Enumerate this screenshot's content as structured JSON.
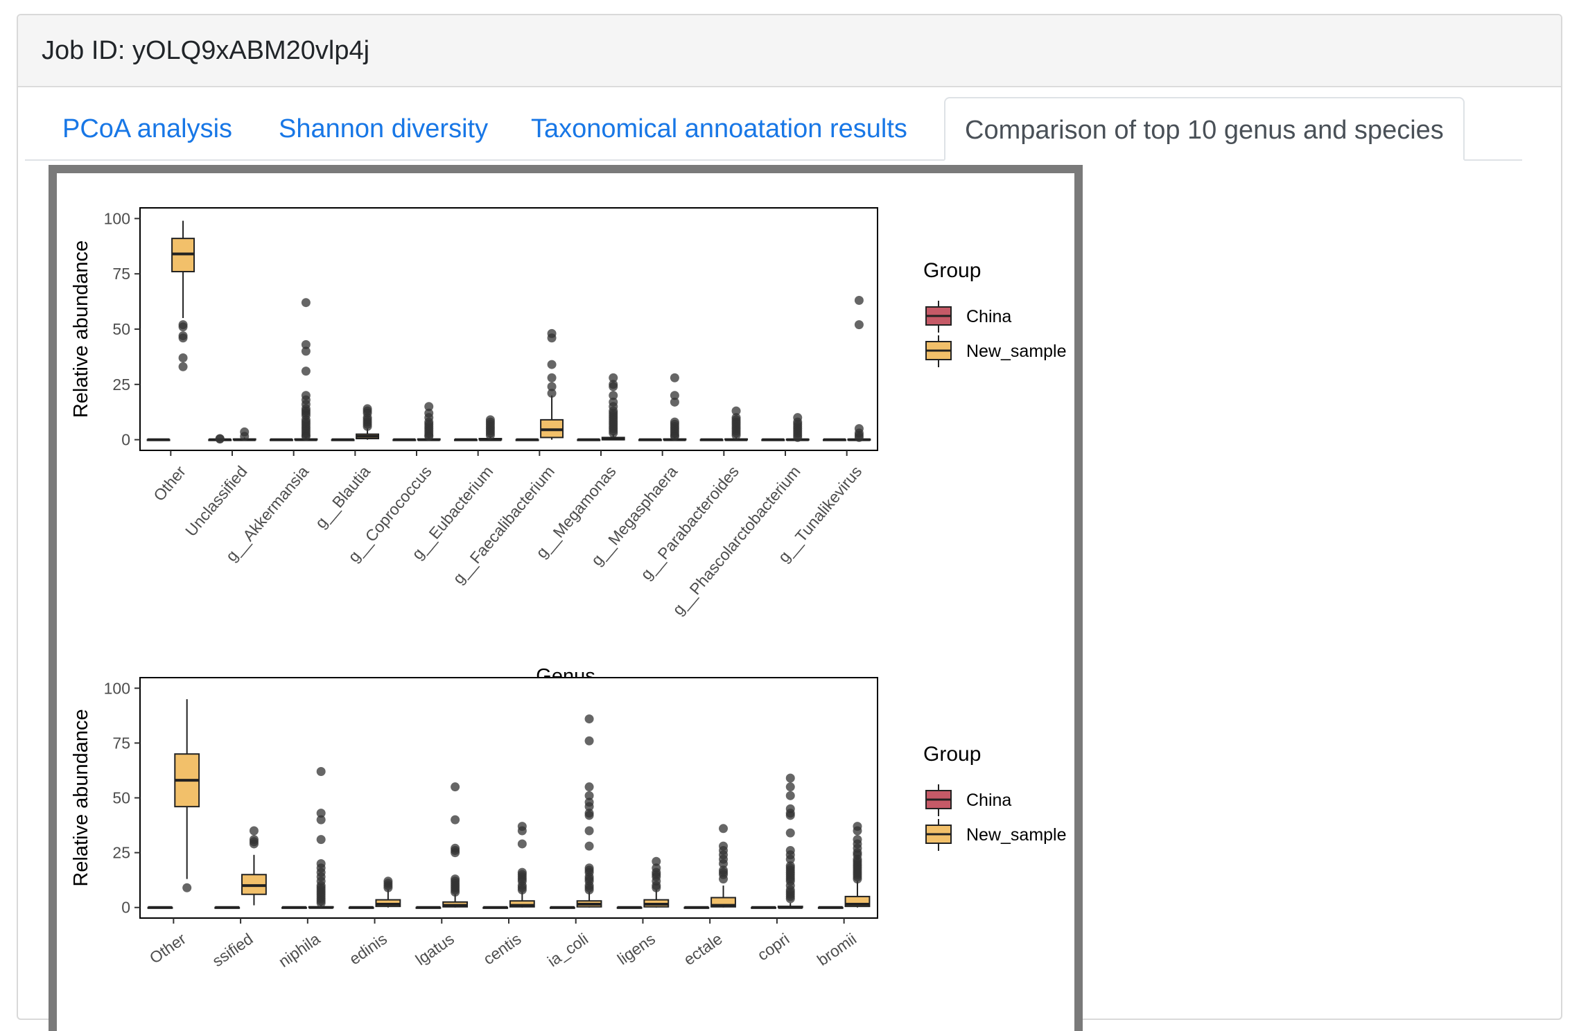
{
  "header": {
    "job_label": "Job ID: yOLQ9xABM20vlp4j"
  },
  "tabs": [
    {
      "label": "PCoA analysis",
      "active": false
    },
    {
      "label": "Shannon diversity",
      "active": false
    },
    {
      "label": "Taxonomical annoatation results",
      "active": false
    },
    {
      "label": "Comparison of top 10 genus and species",
      "active": true
    }
  ],
  "colors": {
    "china": "#c65a67",
    "new_sample": "#f2c06a",
    "tab_link": "#1877e6"
  },
  "chart_data": [
    {
      "type": "boxplot",
      "title": "",
      "ylabel": "Relative abundance",
      "xlabel": "Genus",
      "ylim": [
        0,
        100
      ],
      "yticks": [
        0,
        25,
        50,
        75,
        100
      ],
      "legend": {
        "title": "Group",
        "entries": [
          "China",
          "New_sample"
        ],
        "position": "right"
      },
      "categories": [
        "Other",
        "Unclassified",
        "g__Akkermansia",
        "g__Blautia",
        "g__Coprococcus",
        "g__Eubacterium",
        "g__Faecalibacterium",
        "g__Megamonas",
        "g__Megasphaera",
        "g__Parabacteroides",
        "g__Phascolarctobacterium",
        "g__Tunalikevirus"
      ],
      "series": [
        {
          "name": "China",
          "boxes": [
            {
              "min": 0,
              "q1": 0,
              "median": 0,
              "q3": 0,
              "max": 0,
              "outliers": []
            },
            {
              "min": 0,
              "q1": 0,
              "median": 0,
              "q3": 0,
              "max": 0,
              "outliers": [
                0.5,
                0.3
              ]
            },
            {
              "min": 0,
              "q1": 0,
              "median": 0,
              "q3": 0,
              "max": 0,
              "outliers": []
            },
            {
              "min": 0,
              "q1": 0,
              "median": 0,
              "q3": 0,
              "max": 0,
              "outliers": []
            },
            {
              "min": 0,
              "q1": 0,
              "median": 0,
              "q3": 0,
              "max": 0,
              "outliers": []
            },
            {
              "min": 0,
              "q1": 0,
              "median": 0,
              "q3": 0,
              "max": 0,
              "outliers": []
            },
            {
              "min": 0,
              "q1": 0,
              "median": 0,
              "q3": 0,
              "max": 0,
              "outliers": []
            },
            {
              "min": 0,
              "q1": 0,
              "median": 0,
              "q3": 0,
              "max": 0,
              "outliers": []
            },
            {
              "min": 0,
              "q1": 0,
              "median": 0,
              "q3": 0,
              "max": 0,
              "outliers": []
            },
            {
              "min": 0,
              "q1": 0,
              "median": 0,
              "q3": 0,
              "max": 0,
              "outliers": []
            },
            {
              "min": 0,
              "q1": 0,
              "median": 0,
              "q3": 0,
              "max": 0,
              "outliers": []
            },
            {
              "min": 0,
              "q1": 0,
              "median": 0,
              "q3": 0,
              "max": 0,
              "outliers": []
            }
          ]
        },
        {
          "name": "New_sample",
          "boxes": [
            {
              "min": 55,
              "q1": 76,
              "median": 84,
              "q3": 91,
              "max": 99,
              "outliers": [
                52,
                51,
                47,
                46,
                37,
                33
              ]
            },
            {
              "min": 0,
              "q1": 0,
              "median": 0,
              "q3": 0.3,
              "max": 1,
              "outliers": [
                3.5,
                1.5
              ]
            },
            {
              "min": 0,
              "q1": 0,
              "median": 0,
              "q3": 0.3,
              "max": 1,
              "outliers": [
                62,
                43,
                40,
                31,
                20,
                18,
                16,
                14,
                13,
                12,
                11,
                9,
                8,
                7,
                6,
                5,
                4,
                3,
                2,
                1.5
              ]
            },
            {
              "min": 0,
              "q1": 0.5,
              "median": 1.5,
              "q3": 2.5,
              "max": 5,
              "outliers": [
                14,
                13,
                12,
                10,
                9,
                8,
                7,
                6
              ]
            },
            {
              "min": 0,
              "q1": 0,
              "median": 0,
              "q3": 0.3,
              "max": 1,
              "outliers": [
                15,
                12,
                10,
                8,
                7,
                6,
                5,
                4,
                3,
                2,
                1.5
              ]
            },
            {
              "min": 0,
              "q1": 0,
              "median": 0,
              "q3": 0.5,
              "max": 1.5,
              "outliers": [
                9,
                8,
                7,
                6,
                5,
                4,
                3,
                2
              ]
            },
            {
              "min": 0,
              "q1": 1,
              "median": 4.5,
              "q3": 9,
              "max": 20,
              "outliers": [
                48,
                46,
                34,
                28,
                24,
                21
              ]
            },
            {
              "min": 0,
              "q1": 0,
              "median": 0.3,
              "q3": 1,
              "max": 2.5,
              "outliers": [
                28,
                25,
                24,
                20,
                17,
                15,
                13,
                12,
                11,
                10,
                9,
                8,
                7,
                6,
                5,
                4,
                3
              ]
            },
            {
              "min": 0,
              "q1": 0,
              "median": 0,
              "q3": 0.3,
              "max": 1,
              "outliers": [
                28,
                20,
                17,
                8,
                7,
                6,
                5,
                4,
                3,
                2,
                1.5
              ]
            },
            {
              "min": 0,
              "q1": 0,
              "median": 0,
              "q3": 0.3,
              "max": 1,
              "outliers": [
                13,
                10,
                9,
                8,
                7,
                6,
                5,
                4,
                3,
                2
              ]
            },
            {
              "min": 0,
              "q1": 0,
              "median": 0,
              "q3": 0.2,
              "max": 0.5,
              "outliers": [
                10,
                8,
                7,
                6,
                5,
                4,
                3,
                2,
                1
              ]
            },
            {
              "min": 0,
              "q1": 0,
              "median": 0,
              "q3": 0.2,
              "max": 0.5,
              "outliers": [
                63,
                52,
                5,
                3,
                2,
                1
              ]
            }
          ]
        }
      ]
    },
    {
      "type": "boxplot",
      "title": "",
      "ylabel": "Relative abundance",
      "ylim": [
        0,
        100
      ],
      "yticks": [
        0,
        25,
        50,
        75,
        100
      ],
      "legend": {
        "title": "Group",
        "entries": [
          "China",
          "New_sample"
        ],
        "position": "right"
      },
      "categories": [
        "Other",
        "ssified",
        "niphila",
        "edinis",
        "lgatus",
        "centis",
        "ia_coli",
        "ligens",
        "ectale",
        "copri",
        "bromii"
      ],
      "series": [
        {
          "name": "China",
          "boxes": [
            {
              "min": 0,
              "q1": 0,
              "median": 0,
              "q3": 0,
              "max": 0,
              "outliers": []
            },
            {
              "min": 0,
              "q1": 0,
              "median": 0,
              "q3": 0,
              "max": 0,
              "outliers": []
            },
            {
              "min": 0,
              "q1": 0,
              "median": 0,
              "q3": 0,
              "max": 0,
              "outliers": []
            },
            {
              "min": 0,
              "q1": 0,
              "median": 0,
              "q3": 0,
              "max": 0,
              "outliers": []
            },
            {
              "min": 0,
              "q1": 0,
              "median": 0,
              "q3": 0,
              "max": 0,
              "outliers": []
            },
            {
              "min": 0,
              "q1": 0,
              "median": 0,
              "q3": 0,
              "max": 0,
              "outliers": []
            },
            {
              "min": 0,
              "q1": 0,
              "median": 0,
              "q3": 0,
              "max": 0,
              "outliers": []
            },
            {
              "min": 0,
              "q1": 0,
              "median": 0,
              "q3": 0,
              "max": 0,
              "outliers": []
            },
            {
              "min": 0,
              "q1": 0,
              "median": 0,
              "q3": 0,
              "max": 0,
              "outliers": []
            },
            {
              "min": 0,
              "q1": 0,
              "median": 0,
              "q3": 0,
              "max": 0,
              "outliers": []
            },
            {
              "min": 0,
              "q1": 0,
              "median": 0,
              "q3": 0,
              "max": 0,
              "outliers": []
            }
          ]
        },
        {
          "name": "New_sample",
          "boxes": [
            {
              "min": 13,
              "q1": 46,
              "median": 58,
              "q3": 70,
              "max": 95,
              "outliers": [
                9
              ]
            },
            {
              "min": 1,
              "q1": 6,
              "median": 10,
              "q3": 15,
              "max": 24,
              "outliers": [
                35,
                31,
                30,
                29
              ]
            },
            {
              "min": 0,
              "q1": 0,
              "median": 0,
              "q3": 0.3,
              "max": 1,
              "outliers": [
                62,
                43,
                40,
                31,
                20,
                18,
                16,
                14,
                12,
                10,
                9,
                8,
                7,
                6,
                5,
                4,
                3,
                2
              ]
            },
            {
              "min": 0,
              "q1": 0.5,
              "median": 1.5,
              "q3": 3.5,
              "max": 8,
              "outliers": [
                12,
                11,
                10,
                9
              ]
            },
            {
              "min": 0,
              "q1": 0.3,
              "median": 1,
              "q3": 2.5,
              "max": 6,
              "outliers": [
                55,
                40,
                27,
                26,
                25,
                13,
                12,
                11,
                10,
                9,
                8,
                7
              ]
            },
            {
              "min": 0,
              "q1": 0.3,
              "median": 1,
              "q3": 3,
              "max": 7,
              "outliers": [
                37,
                35,
                29,
                16,
                15,
                14,
                13,
                12,
                10,
                9,
                8
              ]
            },
            {
              "min": 0,
              "q1": 0.3,
              "median": 1.5,
              "q3": 3,
              "max": 7,
              "outliers": [
                86,
                76,
                55,
                51,
                48,
                46,
                43,
                42,
                35,
                28,
                18,
                17,
                16,
                14,
                13,
                12,
                10,
                9,
                8
              ]
            },
            {
              "min": 0,
              "q1": 0.3,
              "median": 1.5,
              "q3": 3.5,
              "max": 8,
              "outliers": [
                21,
                18,
                16,
                15,
                14,
                12,
                10,
                9
              ]
            },
            {
              "min": 0,
              "q1": 0.3,
              "median": 1,
              "q3": 4.5,
              "max": 10,
              "outliers": [
                36,
                28,
                26,
                24,
                22,
                20,
                17,
                16,
                15,
                13
              ]
            },
            {
              "min": 0,
              "q1": 0,
              "median": 0,
              "q3": 0.5,
              "max": 2,
              "outliers": [
                59,
                55,
                51,
                45,
                43,
                42,
                34,
                26,
                24,
                22,
                19,
                18,
                17,
                16,
                15,
                14,
                13,
                12,
                10,
                8,
                7,
                6,
                5,
                4
              ]
            },
            {
              "min": 0,
              "q1": 0.5,
              "median": 1.5,
              "q3": 5,
              "max": 12,
              "outliers": [
                37,
                35,
                31,
                29,
                27,
                25,
                24,
                22,
                21,
                20,
                19,
                18,
                17,
                16,
                15,
                14,
                13
              ]
            }
          ]
        }
      ]
    }
  ]
}
